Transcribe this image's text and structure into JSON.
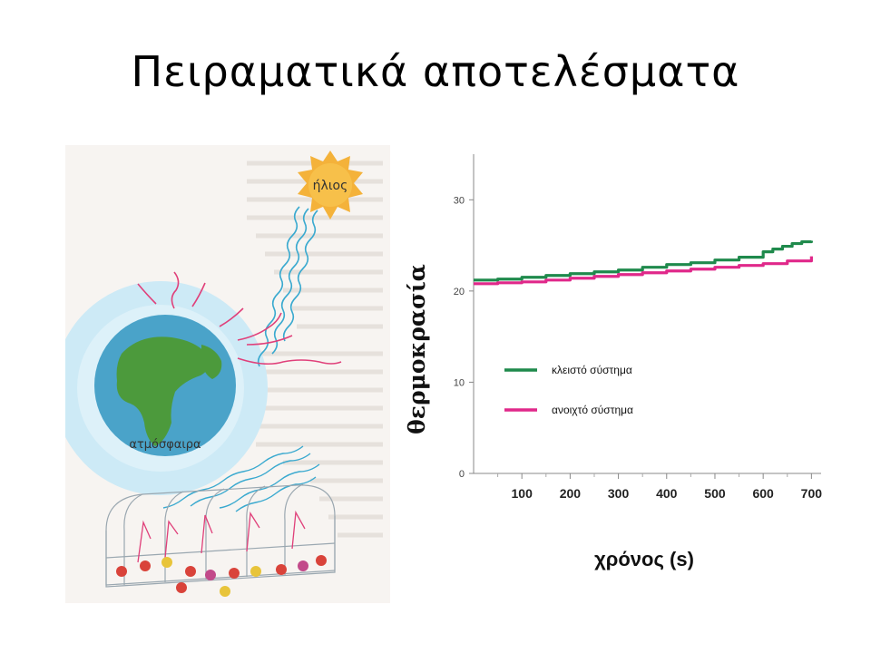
{
  "slide": {
    "title": "Πειραματικά αποτελέσματα"
  },
  "illustration": {
    "sun_label": "ήλιος",
    "atmosphere_label": "ατμόσφαιρα",
    "colors": {
      "sun": "#f4b23a",
      "sky_glow": "#bfe5f4",
      "ocean": "#4aa3c9",
      "land": "#4c9a3c",
      "heat_ray": "#e0407a",
      "sun_ray": "#39a9cf"
    }
  },
  "chart_data": {
    "type": "line",
    "title": "",
    "xlabel": "χρόνος (s)",
    "ylabel": "θερμοκρασία",
    "x_ticks": [
      100,
      200,
      300,
      400,
      500,
      600,
      700
    ],
    "y_ticks": [
      0,
      10,
      20,
      30
    ],
    "xlim": [
      0,
      720
    ],
    "ylim": [
      0,
      35
    ],
    "grid": false,
    "legend_position": "center-left",
    "series": [
      {
        "name": "κλειστό σύστημα",
        "color": "#1f8a4c",
        "x": [
          0,
          50,
          100,
          150,
          200,
          250,
          300,
          350,
          400,
          450,
          500,
          550,
          600,
          620,
          640,
          660,
          680,
          700
        ],
        "y": [
          21.2,
          21.3,
          21.5,
          21.7,
          21.9,
          22.1,
          22.3,
          22.6,
          22.9,
          23.1,
          23.4,
          23.7,
          24.3,
          24.6,
          24.9,
          25.2,
          25.4,
          25.5
        ]
      },
      {
        "name": "ανοιχτό σύστημα",
        "color": "#e0288a",
        "x": [
          0,
          50,
          100,
          150,
          200,
          250,
          300,
          350,
          400,
          450,
          500,
          550,
          600,
          650,
          700
        ],
        "y": [
          20.8,
          20.9,
          21.0,
          21.2,
          21.4,
          21.6,
          21.8,
          22.0,
          22.2,
          22.4,
          22.6,
          22.8,
          23.0,
          23.3,
          23.8
        ]
      }
    ]
  }
}
